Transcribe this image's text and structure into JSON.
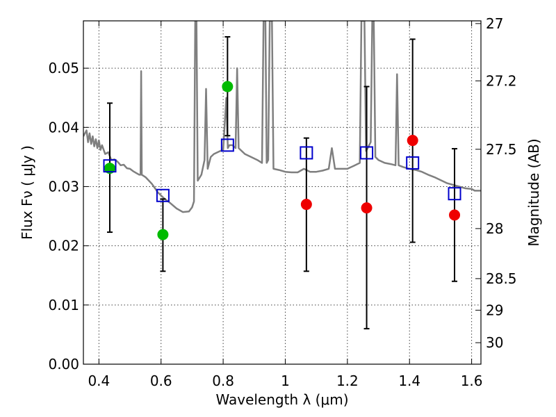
{
  "chart_data": {
    "type": "scatter",
    "title": "",
    "xlabel": "Wavelength  λ (μm)",
    "ylabel": "Flux  Fν  ( μJy )",
    "y2label": "Magnitude (AB)",
    "xlim": [
      0.35,
      1.63
    ],
    "ylim": [
      0.0,
      0.058
    ],
    "grid": true,
    "legend": "none",
    "x_ticks": [
      {
        "value": 0.4,
        "label": "0.4"
      },
      {
        "value": 0.6,
        "label": "0.6"
      },
      {
        "value": 0.8,
        "label": "0.8"
      },
      {
        "value": 1.0,
        "label": "1"
      },
      {
        "value": 1.2,
        "label": "1.2"
      },
      {
        "value": 1.4,
        "label": "1.4"
      },
      {
        "value": 1.6,
        "label": "1.6"
      }
    ],
    "y_ticks": [
      {
        "value": 0.0,
        "label": "0.00"
      },
      {
        "value": 0.01,
        "label": "0.01"
      },
      {
        "value": 0.02,
        "label": "0.02"
      },
      {
        "value": 0.03,
        "label": "0.03"
      },
      {
        "value": 0.04,
        "label": "0.04"
      },
      {
        "value": 0.05,
        "label": "0.05"
      }
    ],
    "y2_ticks": [
      {
        "value": 27,
        "label": "27"
      },
      {
        "value": 27.2,
        "label": "27.2"
      },
      {
        "value": 27.5,
        "label": "27.5"
      },
      {
        "value": 28,
        "label": "28"
      },
      {
        "value": 28.5,
        "label": "28.5"
      },
      {
        "value": 29,
        "label": "29"
      },
      {
        "value": 30,
        "label": "30"
      }
    ],
    "series": [
      {
        "kind": "detections",
        "color": "#00bb00",
        "points": [
          {
            "x": 0.435,
            "y": 0.0331,
            "yerr_low": 0.0223,
            "yerr_high": 0.0441
          },
          {
            "x": 0.606,
            "y": 0.0219,
            "yerr_low": 0.0157,
            "yerr_high": 0.0279
          },
          {
            "x": 0.814,
            "y": 0.0469,
            "yerr_low": 0.0386,
            "yerr_high": 0.0553
          }
        ]
      },
      {
        "kind": "low-significance",
        "color": "#ee0000",
        "points": [
          {
            "x": 1.068,
            "y": 0.027,
            "yerr_low": 0.0157,
            "yerr_high": 0.0382
          },
          {
            "x": 1.262,
            "y": 0.0264,
            "yerr_low": 0.006,
            "yerr_high": 0.0469
          },
          {
            "x": 1.41,
            "y": 0.0378,
            "yerr_low": 0.0206,
            "yerr_high": 0.0549
          },
          {
            "x": 1.545,
            "y": 0.0252,
            "yerr_low": 0.014,
            "yerr_high": 0.0364
          }
        ]
      },
      {
        "kind": "model-photometry",
        "color": "#0000cc",
        "marker": "open-square",
        "points": [
          {
            "x": 0.435,
            "y": 0.0335
          },
          {
            "x": 0.606,
            "y": 0.0285
          },
          {
            "x": 0.814,
            "y": 0.037
          },
          {
            "x": 1.068,
            "y": 0.0357
          },
          {
            "x": 1.262,
            "y": 0.0357
          },
          {
            "x": 1.41,
            "y": 0.034
          },
          {
            "x": 1.545,
            "y": 0.0288
          }
        ]
      },
      {
        "kind": "model-spectrum",
        "color": "#7f7f7f",
        "points": [
          [
            0.35,
            0.0385
          ],
          [
            0.36,
            0.0395
          ],
          [
            0.365,
            0.0375
          ],
          [
            0.37,
            0.039
          ],
          [
            0.375,
            0.0372
          ],
          [
            0.38,
            0.0385
          ],
          [
            0.385,
            0.0368
          ],
          [
            0.39,
            0.038
          ],
          [
            0.395,
            0.0365
          ],
          [
            0.4,
            0.0378
          ],
          [
            0.405,
            0.0362
          ],
          [
            0.41,
            0.037
          ],
          [
            0.42,
            0.0355
          ],
          [
            0.43,
            0.0358
          ],
          [
            0.44,
            0.0345
          ],
          [
            0.45,
            0.0346
          ],
          [
            0.46,
            0.0342
          ],
          [
            0.47,
            0.0336
          ],
          [
            0.48,
            0.0337
          ],
          [
            0.49,
            0.0331
          ],
          [
            0.5,
            0.033
          ],
          [
            0.51,
            0.0326
          ],
          [
            0.52,
            0.0323
          ],
          [
            0.53,
            0.032
          ],
          [
            0.534,
            0.032
          ],
          [
            0.536,
            0.0495
          ],
          [
            0.538,
            0.032
          ],
          [
            0.55,
            0.0316
          ],
          [
            0.57,
            0.0305
          ],
          [
            0.59,
            0.029
          ],
          [
            0.61,
            0.028
          ],
          [
            0.63,
            0.0272
          ],
          [
            0.65,
            0.0263
          ],
          [
            0.67,
            0.0257
          ],
          [
            0.69,
            0.0258
          ],
          [
            0.7,
            0.0265
          ],
          [
            0.706,
            0.0275
          ],
          [
            0.71,
            0.058
          ],
          [
            0.714,
            0.058
          ],
          [
            0.718,
            0.031
          ],
          [
            0.73,
            0.032
          ],
          [
            0.74,
            0.0345
          ],
          [
            0.745,
            0.0465
          ],
          [
            0.75,
            0.033
          ],
          [
            0.76,
            0.035
          ],
          [
            0.77,
            0.0355
          ],
          [
            0.79,
            0.036
          ],
          [
            0.8,
            0.0362
          ],
          [
            0.81,
            0.045
          ],
          [
            0.815,
            0.0365
          ],
          [
            0.82,
            0.037
          ],
          [
            0.83,
            0.037
          ],
          [
            0.84,
            0.0365
          ],
          [
            0.845,
            0.05
          ],
          [
            0.85,
            0.0365
          ],
          [
            0.87,
            0.0355
          ],
          [
            0.89,
            0.035
          ],
          [
            0.91,
            0.0345
          ],
          [
            0.925,
            0.034
          ],
          [
            0.93,
            0.058
          ],
          [
            0.936,
            0.058
          ],
          [
            0.94,
            0.034
          ],
          [
            0.945,
            0.0345
          ],
          [
            0.95,
            0.058
          ],
          [
            0.957,
            0.058
          ],
          [
            0.962,
            0.033
          ],
          [
            0.98,
            0.0328
          ],
          [
            1.0,
            0.0325
          ],
          [
            1.02,
            0.0324
          ],
          [
            1.04,
            0.0324
          ],
          [
            1.06,
            0.033
          ],
          [
            1.08,
            0.0325
          ],
          [
            1.1,
            0.0325
          ],
          [
            1.12,
            0.0327
          ],
          [
            1.14,
            0.033
          ],
          [
            1.15,
            0.0365
          ],
          [
            1.16,
            0.033
          ],
          [
            1.18,
            0.033
          ],
          [
            1.2,
            0.033
          ],
          [
            1.22,
            0.0335
          ],
          [
            1.24,
            0.034
          ],
          [
            1.245,
            0.058
          ],
          [
            1.255,
            0.058
          ],
          [
            1.26,
            0.036
          ],
          [
            1.275,
            0.0375
          ],
          [
            1.28,
            0.058
          ],
          [
            1.285,
            0.058
          ],
          [
            1.29,
            0.035
          ],
          [
            1.3,
            0.0345
          ],
          [
            1.32,
            0.034
          ],
          [
            1.34,
            0.0338
          ],
          [
            1.355,
            0.0336
          ],
          [
            1.36,
            0.049
          ],
          [
            1.365,
            0.0336
          ],
          [
            1.38,
            0.0333
          ],
          [
            1.4,
            0.033
          ],
          [
            1.42,
            0.0328
          ],
          [
            1.44,
            0.0325
          ],
          [
            1.46,
            0.032
          ],
          [
            1.48,
            0.0316
          ],
          [
            1.5,
            0.0311
          ],
          [
            1.52,
            0.0306
          ],
          [
            1.54,
            0.0303
          ],
          [
            1.56,
            0.03
          ],
          [
            1.58,
            0.0297
          ],
          [
            1.6,
            0.0296
          ],
          [
            1.61,
            0.0293
          ],
          [
            1.63,
            0.0293
          ]
        ]
      }
    ]
  }
}
